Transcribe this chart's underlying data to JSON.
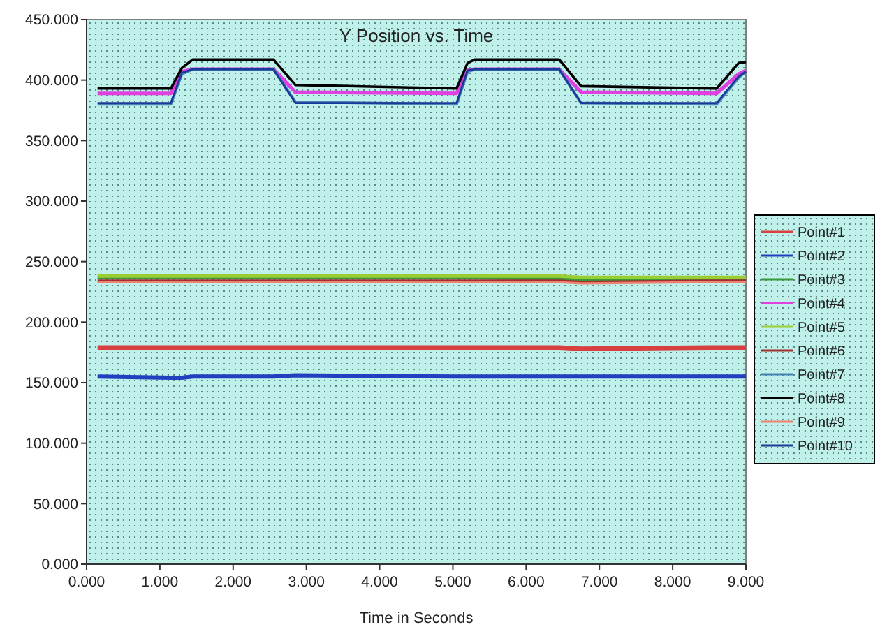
{
  "chart_data": {
    "type": "line",
    "title": "Y Position vs. Time",
    "xlabel": "Time in Seconds",
    "x": [
      0.15,
      1.15,
      1.3,
      1.45,
      2.55,
      2.85,
      5.05,
      5.2,
      5.3,
      6.45,
      6.75,
      8.6,
      8.9,
      9.0
    ],
    "xlim": [
      0,
      9
    ],
    "xticks": [
      {
        "value": 0,
        "label": "0.000"
      },
      {
        "value": 1,
        "label": "1.000"
      },
      {
        "value": 2,
        "label": "2.000"
      },
      {
        "value": 3,
        "label": "3.000"
      },
      {
        "value": 4,
        "label": "4.000"
      },
      {
        "value": 5,
        "label": "5.000"
      },
      {
        "value": 6,
        "label": "6.000"
      },
      {
        "value": 7,
        "label": "7.000"
      },
      {
        "value": 8,
        "label": "8.000"
      },
      {
        "value": 9,
        "label": "9.000"
      }
    ],
    "ylim": [
      0,
      450
    ],
    "yticks": [
      {
        "value": 0,
        "label": "0.000"
      },
      {
        "value": 50,
        "label": "50.000"
      },
      {
        "value": 100,
        "label": "100.000"
      },
      {
        "value": 150,
        "label": "150.000"
      },
      {
        "value": 200,
        "label": "200.000"
      },
      {
        "value": 250,
        "label": "250.000"
      },
      {
        "value": 300,
        "label": "300.000"
      },
      {
        "value": 350,
        "label": "350.000"
      },
      {
        "value": 400,
        "label": "400.000"
      },
      {
        "value": 450,
        "label": "450.000"
      }
    ],
    "grid": false,
    "legend": "right",
    "marker": "none",
    "line_style": "solid",
    "series": [
      {
        "name": "Point#1",
        "color": "#d84040",
        "values": [
          179,
          179,
          179,
          179,
          179,
          179,
          179,
          179,
          179,
          179,
          178,
          179,
          179,
          179
        ]
      },
      {
        "name": "Point#2",
        "color": "#2040c0",
        "values": [
          155,
          154,
          154,
          155,
          155,
          156,
          155,
          155,
          155,
          155,
          155,
          155,
          155,
          155
        ]
      },
      {
        "name": "Point#3",
        "color": "#3a9a3a",
        "values": [
          237,
          237,
          237,
          237,
          237,
          237,
          237,
          237,
          237,
          236,
          235,
          235,
          235,
          235
        ]
      },
      {
        "name": "Point#4",
        "color": "#e040e0",
        "values": [
          389,
          389,
          407,
          409,
          409,
          390,
          389,
          408,
          409,
          409,
          390,
          389,
          405,
          408
        ]
      },
      {
        "name": "Point#5",
        "color": "#9acd32",
        "values": [
          238,
          238,
          238,
          238,
          238,
          238,
          238,
          238,
          238,
          238,
          237,
          237,
          237,
          237
        ]
      },
      {
        "name": "Point#6",
        "color": "#a03030",
        "values": [
          234,
          234,
          234,
          234,
          234,
          234,
          234,
          234,
          234,
          234,
          233,
          234,
          234,
          234
        ]
      },
      {
        "name": "Point#7",
        "color": "#4682b4",
        "values": [
          380,
          380,
          405,
          409,
          409,
          382,
          380,
          407,
          409,
          409,
          381,
          380,
          402,
          407
        ]
      },
      {
        "name": "Point#8",
        "color": "#000000",
        "values": [
          393,
          393,
          410,
          417,
          417,
          396,
          393,
          414,
          417,
          417,
          395,
          393,
          414,
          415
        ]
      },
      {
        "name": "Point#9",
        "color": "#f08070",
        "values": [
          233,
          233,
          233,
          233,
          233,
          233,
          233,
          233,
          233,
          233,
          232,
          233,
          233,
          233
        ]
      },
      {
        "name": "Point#10",
        "color": "#1a3a9a",
        "values": [
          381,
          381,
          406,
          409,
          409,
          381,
          381,
          408,
          409,
          409,
          381,
          381,
          403,
          407
        ]
      }
    ]
  }
}
